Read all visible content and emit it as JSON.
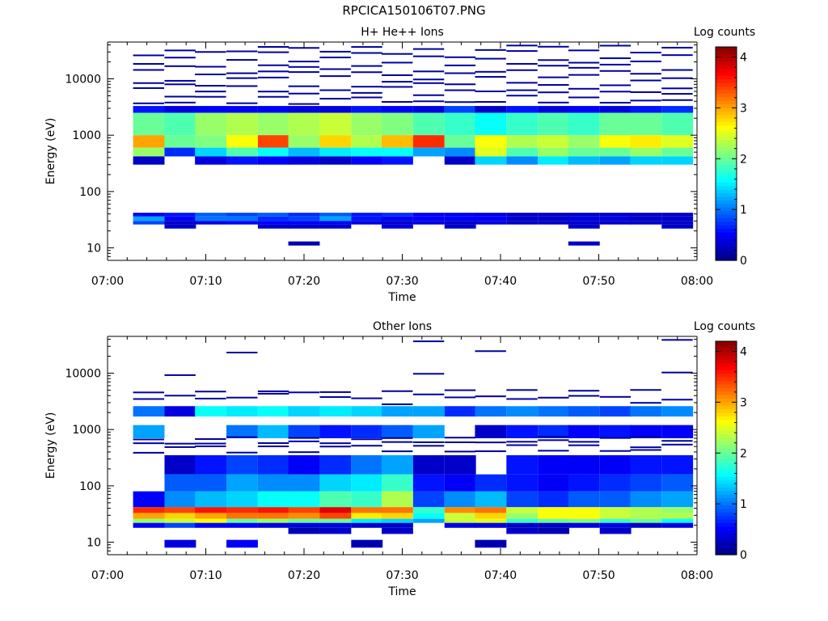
{
  "page_title": "RPCICA150106T07.PNG",
  "colors": {
    "colormap": [
      "#000080",
      "#0000ff",
      "#0080ff",
      "#00ffff",
      "#80ff80",
      "#ffff00",
      "#ff8000",
      "#ff0000",
      "#800000"
    ],
    "background": "#ffffff",
    "axis": "#000000"
  },
  "chart_data": [
    {
      "type": "heatmap",
      "title": "H+ He++ Ions",
      "xlabel": "Time",
      "ylabel": "Energy (eV)",
      "colorbar_label": "Log counts",
      "colorbar_ticks": [
        "0",
        "1",
        "2",
        "3",
        "4"
      ],
      "colorbar_range": [
        0,
        4.2
      ],
      "x_ticks": [
        "07:00",
        "07:10",
        "07:20",
        "07:30",
        "07:40",
        "07:50",
        "08:00"
      ],
      "x_range_min": [
        0,
        60
      ],
      "y_scale": "log",
      "y_ticks": [
        "10",
        "100",
        "1000",
        "10000"
      ],
      "y_range": [
        6,
        45000
      ],
      "time_bins_start_min": [
        2.6,
        5.8,
        8.9,
        12.1,
        15.3,
        18.4,
        21.6,
        24.8,
        27.9,
        31.1,
        34.3,
        37.4,
        40.6,
        43.8,
        46.9,
        50.1,
        53.2,
        56.4
      ],
      "time_bin_width_min": 3.16,
      "bands": [
        {
          "e_lo": 1000,
          "e_hi": 2500,
          "values": [
            2.0,
            1.9,
            2.2,
            2.3,
            2.2,
            2.3,
            2.4,
            2.2,
            2.1,
            1.9,
            1.8,
            1.6,
            1.8,
            1.9,
            1.8,
            2.0,
            2.0,
            1.9
          ]
        },
        {
          "e_lo": 600,
          "e_hi": 1000,
          "values": [
            3.0,
            2.0,
            2.1,
            2.6,
            3.4,
            2.2,
            2.8,
            2.3,
            2.9,
            3.5,
            2.0,
            2.6,
            2.3,
            2.4,
            2.2,
            2.6,
            2.7,
            2.5
          ]
        },
        {
          "e_lo": 420,
          "e_hi": 600,
          "values": [
            2.2,
            0.7,
            1.4,
            1.9,
            1.6,
            1.3,
            1.5,
            1.6,
            1.6,
            1.2,
            1.1,
            2.5,
            1.9,
            2.2,
            2.0,
            2.0,
            2.2,
            2.0
          ]
        },
        {
          "e_lo": 300,
          "e_hi": 420,
          "values": [
            0.3,
            0.0,
            0.4,
            0.6,
            0.5,
            0.4,
            0.3,
            0.5,
            0.6,
            0.0,
            0.3,
            1.4,
            1.1,
            1.5,
            1.3,
            1.2,
            1.4,
            1.4
          ]
        },
        {
          "e_lo": 2500,
          "e_hi": 3300,
          "values": [
            0.6,
            0.4,
            0.5,
            0.5,
            0.5,
            0.4,
            0.4,
            0.6,
            0.5,
            0.4,
            0.8,
            0.3,
            0.6,
            0.4,
            0.5,
            0.4,
            0.6,
            0.7
          ]
        },
        {
          "e_lo": 36,
          "e_hi": 42,
          "values": [
            0.5,
            0.6,
            0.9,
            0.8,
            0.9,
            0.7,
            0.9,
            0.6,
            0.7,
            0.5,
            0.5,
            0.4,
            0.3,
            0.3,
            0.3,
            0.3,
            0.3,
            0.3
          ]
        },
        {
          "e_lo": 30,
          "e_hi": 36,
          "values": [
            1.2,
            0.5,
            1.0,
            1.0,
            0.7,
            0.8,
            1.2,
            0.6,
            0.5,
            0.5,
            0.5,
            0.5,
            0.3,
            0.3,
            0.4,
            0.4,
            0.3,
            0.3
          ]
        },
        {
          "e_lo": 26,
          "e_hi": 30,
          "values": [
            0.8,
            0.3,
            0.4,
            0.5,
            0.5,
            0.5,
            0.5,
            0.4,
            0.3,
            0.4,
            0.3,
            0.4,
            0.3,
            0.3,
            0.3,
            0.3,
            0.3,
            0.3
          ]
        },
        {
          "e_lo": 22,
          "e_hi": 26,
          "values": [
            0.0,
            0.3,
            0.0,
            0.0,
            0.3,
            0.3,
            0.3,
            0.0,
            0.4,
            0.0,
            0.3,
            0.0,
            0.0,
            0.0,
            0.3,
            0.0,
            0.0,
            0.3
          ]
        },
        {
          "e_lo": 11,
          "e_hi": 13,
          "values": [
            0.0,
            0.0,
            0.0,
            0.0,
            0.0,
            0.2,
            0.0,
            0.0,
            0.0,
            0.0,
            0.0,
            0.0,
            0.0,
            0.0,
            0.3,
            0.0,
            0.0,
            0.0
          ]
        }
      ],
      "lines": [
        [
          0.3,
          0.3,
          0.3,
          0.3,
          0.3,
          0.3,
          0.3,
          0.3,
          0.3,
          0.3,
          0.3,
          0.3,
          0.3,
          0.3,
          0.3,
          0.3,
          0.3,
          0.3
        ],
        [
          3800,
          6000,
          8200,
          12000,
          17000,
          27000
        ],
        [
          3500,
          5000,
          7000,
          9000,
          14000,
          22000,
          33000
        ],
        [
          4000,
          5500,
          7800,
          10500,
          16000,
          25000
        ],
        [
          3600,
          6200,
          9500,
          13000,
          19000,
          30000
        ],
        [
          4200,
          5800,
          8800,
          12500,
          18000,
          26000,
          36000
        ],
        [
          3700,
          4800,
          7200,
          11000,
          15000,
          21000,
          31000
        ],
        [
          4100,
          6500,
          9800,
          14500,
          20000,
          28000
        ],
        [
          3900,
          5200,
          7500,
          11500,
          16500,
          24000,
          34000
        ]
      ]
    },
    {
      "type": "heatmap",
      "title": "Other Ions",
      "xlabel": "Time",
      "ylabel": "Energy (eV)",
      "colorbar_label": "Log counts",
      "colorbar_ticks": [
        "0",
        "1",
        "2",
        "3",
        "4"
      ],
      "colorbar_range": [
        0,
        4.2
      ],
      "x_ticks": [
        "07:00",
        "07:10",
        "07:20",
        "07:30",
        "07:40",
        "07:50",
        "08:00"
      ],
      "x_range_min": [
        0,
        60
      ],
      "y_scale": "log",
      "y_ticks": [
        "10",
        "100",
        "1000",
        "10000"
      ],
      "y_range": [
        6,
        45000
      ],
      "time_bins_start_min": [
        2.6,
        5.8,
        8.9,
        12.1,
        15.3,
        18.4,
        21.6,
        24.8,
        27.9,
        31.1,
        34.3,
        37.4,
        40.6,
        43.8,
        46.9,
        50.1,
        53.2,
        56.4
      ],
      "time_bin_width_min": 3.16,
      "bands": [
        {
          "e_lo": 33,
          "e_hi": 42,
          "values": [
            3.5,
            3.4,
            3.6,
            3.5,
            3.6,
            3.4,
            3.8,
            3.2,
            3.2,
            1.8,
            3.1,
            3.2,
            2.4,
            2.6,
            2.6,
            2.4,
            2.3,
            2.2
          ]
        },
        {
          "e_lo": 26,
          "e_hi": 33,
          "values": [
            3.0,
            2.8,
            3.0,
            3.2,
            3.2,
            3.1,
            3.4,
            2.7,
            2.8,
            1.6,
            2.4,
            2.8,
            2.2,
            2.6,
            2.6,
            2.4,
            2.3,
            2.3
          ]
        },
        {
          "e_lo": 22,
          "e_hi": 26,
          "values": [
            2.2,
            2.4,
            2.6,
            2.0,
            2.2,
            2.0,
            2.0,
            1.5,
            1.4,
            1.2,
            2.4,
            2.5,
            1.8,
            2.0,
            2.1,
            1.8,
            2.0,
            1.6
          ]
        },
        {
          "e_lo": 18,
          "e_hi": 22,
          "values": [
            0.5,
            0.8,
            0.5,
            0.5,
            0.4,
            0.4,
            0.4,
            0.3,
            0.3,
            0.0,
            0.4,
            0.4,
            0.3,
            0.3,
            0.4,
            0.4,
            0.3,
            0.4
          ]
        },
        {
          "e_lo": 42,
          "e_hi": 80,
          "values": [
            0.5,
            1.1,
            1.3,
            1.4,
            1.6,
            1.6,
            1.9,
            1.8,
            2.3,
            0.8,
            1.1,
            1.3,
            0.8,
            0.7,
            0.9,
            0.9,
            1.1,
            1.2
          ]
        },
        {
          "e_lo": 80,
          "e_hi": 160,
          "values": [
            0.0,
            0.9,
            0.9,
            1.2,
            1.1,
            1.1,
            1.4,
            1.5,
            1.8,
            0.6,
            0.5,
            0.7,
            0.6,
            0.5,
            0.6,
            0.7,
            0.8,
            0.9
          ]
        },
        {
          "e_lo": 160,
          "e_hi": 350,
          "values": [
            0.0,
            0.3,
            0.6,
            0.8,
            0.7,
            0.5,
            0.7,
            1.0,
            1.2,
            0.3,
            0.3,
            0.0,
            0.6,
            0.5,
            0.5,
            0.5,
            0.6,
            0.6
          ]
        },
        {
          "e_lo": 1700,
          "e_hi": 2600,
          "values": [
            1.0,
            0.4,
            1.6,
            1.5,
            1.6,
            1.4,
            1.5,
            1.4,
            1.2,
            1.2,
            0.7,
            1.0,
            1.1,
            1.0,
            0.9,
            0.8,
            1.0,
            1.1
          ]
        },
        {
          "e_lo": 700,
          "e_hi": 1200,
          "values": [
            1.2,
            0.0,
            0.0,
            1.0,
            1.3,
            0.8,
            0.6,
            0.7,
            0.9,
            1.2,
            0.0,
            0.3,
            0.6,
            0.7,
            0.5,
            0.6,
            0.5,
            0.5
          ]
        },
        {
          "e_lo": 14,
          "e_hi": 18,
          "values": [
            0.0,
            0.0,
            0.0,
            0.0,
            0.0,
            0.2,
            0.3,
            0.0,
            0.3,
            0.0,
            0.0,
            0.0,
            0.3,
            0.2,
            0.0,
            0.3,
            0.0,
            0.0
          ]
        },
        {
          "e_lo": 8,
          "e_hi": 11,
          "values": [
            0.0,
            0.4,
            0.0,
            0.5,
            0.0,
            0.0,
            0.0,
            0.2,
            0.0,
            0.0,
            0.0,
            0.2,
            0.0,
            0.0,
            0.0,
            0.0,
            0.0,
            0.0
          ]
        }
      ],
      "lines": [
        [
          0.3,
          0.3,
          0.3,
          0.3,
          0.3,
          0.3,
          0.3,
          0.3,
          0.3,
          0.3,
          0.3,
          0.3,
          0.3,
          0.3,
          0.3,
          0.3,
          0.3,
          0.3
        ],
        [
          400,
          500,
          650,
          2900,
          4200
        ],
        [
          450,
          580,
          3500,
          9000,
          38000
        ],
        [
          420,
          520,
          700,
          3100,
          4600
        ],
        [
          380,
          610,
          3400,
          24000
        ],
        [
          440,
          560,
          3600,
          4400
        ],
        [
          410,
          540,
          690,
          3800
        ],
        [
          460,
          590,
          3300,
          4500
        ],
        [
          430,
          620,
          3700
        ]
      ]
    }
  ]
}
